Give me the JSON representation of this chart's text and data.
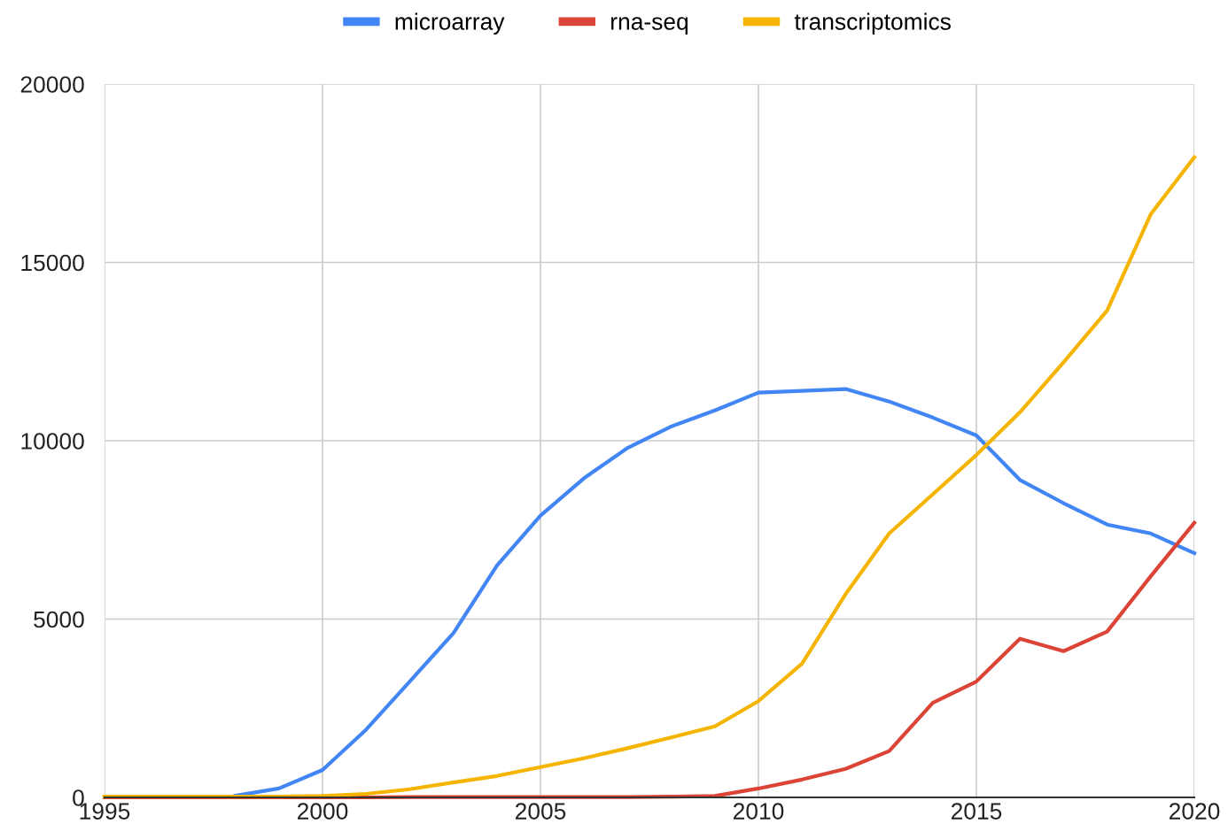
{
  "chart_data": {
    "type": "line",
    "x": [
      1995,
      1996,
      1997,
      1998,
      1999,
      2000,
      2001,
      2002,
      2003,
      2004,
      2005,
      2006,
      2007,
      2008,
      2009,
      2010,
      2011,
      2012,
      2013,
      2014,
      2015,
      2016,
      2017,
      2018,
      2019,
      2020
    ],
    "series": [
      {
        "name": "microarray",
        "color": "#4285f4",
        "values": [
          0,
          0,
          null,
          50,
          250,
          770,
          1900,
          3250,
          4600,
          6500,
          7900,
          8950,
          9800,
          10400,
          10850,
          11350,
          11400,
          11450,
          11100,
          10650,
          10150,
          8900,
          8250,
          7650,
          7400,
          6850
        ]
      },
      {
        "name": "rna-seq",
        "color": "#db4437",
        "values": [
          0,
          0,
          0,
          0,
          0,
          0,
          0,
          10,
          10,
          10,
          10,
          10,
          10,
          20,
          40,
          250,
          500,
          800,
          1300,
          2650,
          3250,
          4450,
          4100,
          4650,
          6200,
          7700
        ]
      },
      {
        "name": "transcriptomics",
        "color": "#f4b400",
        "values": [
          20,
          20,
          20,
          20,
          20,
          40,
          100,
          230,
          420,
          600,
          850,
          1100,
          1380,
          1680,
          1990,
          2700,
          3750,
          5700,
          7400,
          8500,
          9600,
          10800,
          12200,
          13650,
          16350,
          17950
        ]
      }
    ],
    "xlim": [
      1995,
      2020
    ],
    "xticks": [
      1995,
      2000,
      2005,
      2010,
      2015,
      2020
    ],
    "ylim": [
      0,
      20000
    ],
    "yticks": [
      0,
      5000,
      10000,
      15000,
      20000
    ],
    "grid": true,
    "legend": "top",
    "marker": "none",
    "line_style": "solid"
  }
}
